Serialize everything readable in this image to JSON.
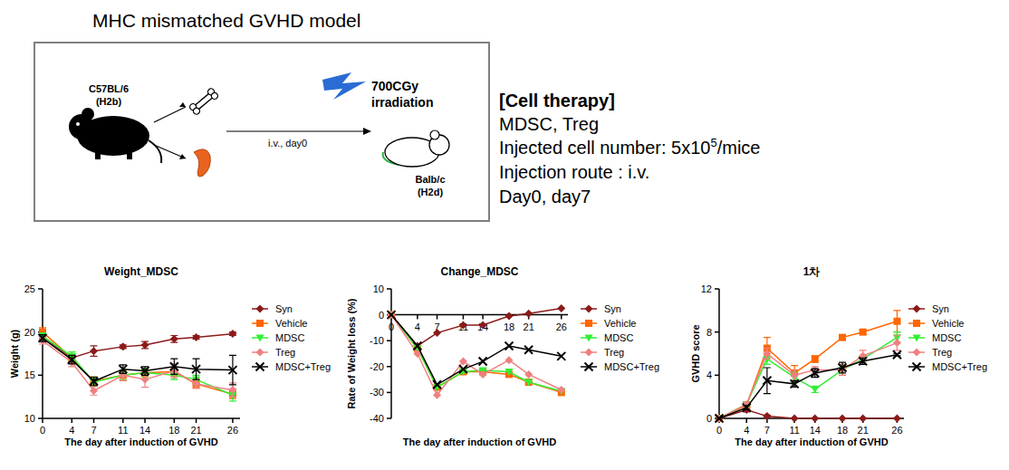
{
  "diagram": {
    "title": "MHC mismatched GVHD model",
    "donor": {
      "strain": "C57BL/6",
      "haplotype": "(H2b)"
    },
    "transfer": "i.v., day0",
    "irradiation": [
      "700CGy",
      "irradiation"
    ],
    "recipient": {
      "strain": "Balb/c",
      "haplotype": "(H2d)"
    }
  },
  "cell_therapy": {
    "heading": "[Cell therapy]",
    "agents": "MDSC, Treg",
    "cell_number": {
      "text": "Injected cell number: 5x10",
      "superscript": "5",
      "suffix": "/mice"
    },
    "route": "Injection route : i.v.",
    "schedule": "Day0, day7"
  },
  "chart_data": [
    {
      "type": "line",
      "title": "Weight_MDSC",
      "x_label": "The day after induction of GVHD",
      "y_label": "Weight (g)",
      "x": [
        0,
        4,
        7,
        11,
        14,
        18,
        21,
        26
      ],
      "xlim": [
        0,
        27
      ],
      "xticks": [
        0,
        4,
        7,
        11,
        14,
        18,
        21,
        26
      ],
      "ylim": [
        10,
        25
      ],
      "yticks": [
        10,
        15,
        20,
        25
      ],
      "legend": "right",
      "series": [
        {
          "name": "Syn",
          "color": "#8b1a1a",
          "marker": "diamond",
          "values": [
            19.5,
            17.0,
            17.8,
            18.3,
            18.5,
            19.2,
            19.4,
            19.8
          ],
          "errors": [
            0.3,
            0.3,
            0.6,
            0.2,
            0.4,
            0.4,
            0.2,
            0.2
          ]
        },
        {
          "name": "Vehicle",
          "color": "#ff6600",
          "marker": "square",
          "values": [
            20.0,
            17.0,
            14.3,
            15.0,
            15.3,
            15.4,
            14.0,
            12.8
          ],
          "errors": [
            0.5,
            0.5,
            0.5,
            0.6,
            0.4,
            0.5,
            0.5,
            0.5
          ]
        },
        {
          "name": "MDSC",
          "color": "#33ee33",
          "marker": "triangle-down",
          "values": [
            19.5,
            17.2,
            14.2,
            15.0,
            15.3,
            15.0,
            14.5,
            12.7
          ],
          "errors": [
            0.4,
            0.5,
            0.5,
            0.5,
            0.5,
            0.5,
            0.5,
            0.7
          ]
        },
        {
          "name": "Treg",
          "color": "#f08080",
          "marker": "diamond",
          "values": [
            19.0,
            16.5,
            13.2,
            15.0,
            14.5,
            15.5,
            14.0,
            13.3
          ],
          "errors": [
            0.4,
            0.5,
            0.5,
            0.6,
            0.9,
            0.8,
            0.5,
            0.8
          ]
        },
        {
          "name": "MDSC+Treg",
          "color": "#000000",
          "marker": "x",
          "values": [
            19.3,
            16.8,
            14.3,
            15.7,
            15.5,
            16.0,
            15.7,
            15.6
          ],
          "errors": [
            0.4,
            0.5,
            0.5,
            0.5,
            0.5,
            0.9,
            1.2,
            1.7
          ]
        }
      ]
    },
    {
      "type": "line",
      "title": "Change_MDSC",
      "x_label": "The day after induction of GVHD",
      "y_label": "Rate of Weight loss (%)",
      "x": [
        0,
        4,
        7,
        11,
        14,
        18,
        21,
        26
      ],
      "xlim": [
        0,
        27
      ],
      "xticks": [
        0,
        4,
        7,
        11,
        14,
        18,
        21,
        26
      ],
      "ylim": [
        -40,
        10
      ],
      "yticks": [
        -40,
        -30,
        -20,
        -10,
        0,
        10
      ],
      "legend": "right",
      "series": [
        {
          "name": "Syn",
          "color": "#8b1a1a",
          "marker": "diamond",
          "values": [
            0,
            -12,
            -7,
            -4,
            -4,
            -0.5,
            0.5,
            2.5
          ]
        },
        {
          "name": "Vehicle",
          "color": "#ff6600",
          "marker": "square",
          "values": [
            0,
            -13,
            -28,
            -22,
            -22,
            -23,
            -26,
            -30
          ]
        },
        {
          "name": "MDSC",
          "color": "#33ee33",
          "marker": "triangle-down",
          "values": [
            0,
            -13,
            -28,
            -22,
            -21.5,
            -22,
            -26,
            -29.5
          ]
        },
        {
          "name": "Treg",
          "color": "#f08080",
          "marker": "diamond",
          "values": [
            0,
            -15,
            -31,
            -18,
            -23,
            -17.5,
            -23,
            -29
          ]
        },
        {
          "name": "MDSC+Treg",
          "color": "#000000",
          "marker": "x",
          "values": [
            0,
            -12,
            -27,
            -21,
            -18,
            -12,
            -13.5,
            -16
          ]
        }
      ]
    },
    {
      "type": "line",
      "title": "1차",
      "x_label": "The day after induction of GVHD",
      "y_label": "GVHD score",
      "x": [
        0,
        4,
        7,
        11,
        14,
        18,
        21,
        26
      ],
      "xlim": [
        0,
        27
      ],
      "xticks": [
        0,
        4,
        7,
        11,
        14,
        18,
        21,
        26
      ],
      "ylim": [
        0,
        12
      ],
      "yticks": [
        0,
        4,
        8,
        12
      ],
      "legend": "right",
      "series": [
        {
          "name": "Syn",
          "color": "#8b1a1a",
          "marker": "diamond",
          "values": [
            0,
            0.8,
            0.2,
            0,
            0,
            0,
            0,
            0
          ],
          "errors": [
            0,
            0.2,
            0.1,
            0,
            0,
            0,
            0,
            0
          ]
        },
        {
          "name": "Vehicle",
          "color": "#ff6600",
          "marker": "square",
          "values": [
            0,
            1.2,
            6.5,
            4.2,
            5.5,
            7.5,
            8.0,
            9.0
          ],
          "errors": [
            0,
            0.2,
            1.0,
            0.7,
            0.3,
            0.2,
            0.2,
            1.0
          ]
        },
        {
          "name": "MDSC",
          "color": "#33ee33",
          "marker": "triangle-down",
          "values": [
            0,
            1.3,
            5.5,
            3.8,
            2.7,
            4.5,
            5.5,
            7.5
          ],
          "errors": [
            0,
            0.2,
            0.5,
            0.5,
            0.3,
            0.5,
            0.3,
            0.5
          ]
        },
        {
          "name": "Treg",
          "color": "#f08080",
          "marker": "diamond",
          "values": [
            0,
            1.3,
            6.0,
            4.0,
            4.5,
            4.5,
            5.8,
            7.0
          ],
          "errors": [
            0,
            0.2,
            0.5,
            0.5,
            0.3,
            0.5,
            0.5,
            0.7
          ]
        },
        {
          "name": "MDSC+Treg",
          "color": "#000000",
          "marker": "x",
          "values": [
            0,
            1.0,
            3.5,
            3.2,
            4.2,
            4.7,
            5.3,
            5.9
          ],
          "errors": [
            0,
            0.2,
            1.2,
            0.3,
            0.4,
            0.5,
            0.3,
            0.1
          ]
        }
      ]
    }
  ]
}
